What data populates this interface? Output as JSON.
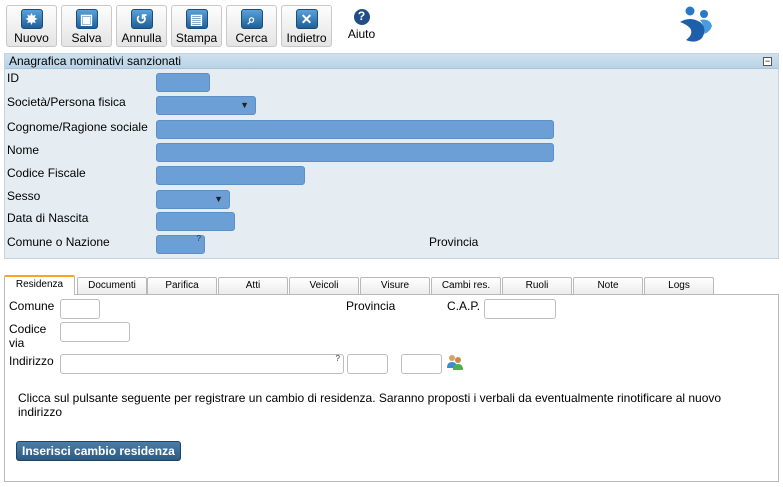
{
  "toolbar": {
    "nuovo": "Nuovo",
    "salva": "Salva",
    "annulla": "Annulla",
    "stampa": "Stampa",
    "cerca": "Cerca",
    "indietro": "Indietro",
    "aiuto": "Aiuto"
  },
  "icons": {
    "nuovo": "new-icon",
    "salva": "save-icon",
    "annulla": "undo-icon",
    "stampa": "print-icon",
    "cerca": "search-icon",
    "indietro": "back-icon",
    "aiuto": "help-icon"
  },
  "panel": {
    "title": "Anagrafica nominativi sanzionati",
    "collapse_symbol": "−",
    "fields": {
      "id": "ID",
      "tipo": "Società/Persona fisica",
      "cognome": "Cognome/Ragione sociale",
      "nome": "Nome",
      "cf": "Codice Fiscale",
      "sesso": "Sesso",
      "nascita": "Data di Nascita",
      "comune": "Comune o Nazione",
      "provincia": "Provincia"
    },
    "values": {
      "id": "",
      "tipo": "",
      "cognome": "",
      "nome": "",
      "cf": "",
      "sesso": "",
      "nascita": "",
      "comune": ""
    }
  },
  "tabs": [
    "Residenza",
    "Documenti",
    "Parifica",
    "Atti",
    "Veicoli",
    "Visure",
    "Cambi res.",
    "Ruoli",
    "Note",
    "Logs"
  ],
  "residenza": {
    "comune": "Comune",
    "provincia": "Provincia",
    "cap": "C.A.P.",
    "codice_via_1": "Codice",
    "codice_via_2": "via",
    "indirizzo": "Indirizzo",
    "values": {
      "comune": "",
      "cap": "",
      "codice_via": "",
      "indirizzo": "",
      "civico": "",
      "esponente": ""
    },
    "message": "Clicca sul pulsante seguente per registrare un cambio di residenza. Saranno proposti i verbali da eventualmente rinotificare al nuovo indirizzo",
    "button": "Inserisci cambio residenza"
  },
  "colors": {
    "field_blue": "#6c9fd6",
    "panel_bg": "#e6edf2",
    "active_tab": "#f5a623",
    "button_blue": "#2d5a82"
  }
}
